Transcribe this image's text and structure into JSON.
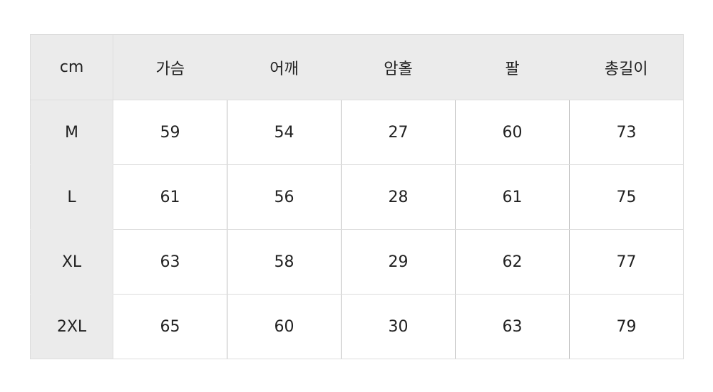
{
  "table": {
    "headers": [
      "cm",
      "가슴",
      "어깨",
      "암홀",
      "팔",
      "총길이"
    ],
    "rows": [
      {
        "size": "M",
        "values": [
          "59",
          "54",
          "27",
          "60",
          "73"
        ]
      },
      {
        "size": "L",
        "values": [
          "61",
          "56",
          "28",
          "61",
          "75"
        ]
      },
      {
        "size": "XL",
        "values": [
          "63",
          "58",
          "29",
          "62",
          "77"
        ]
      },
      {
        "size": "2XL",
        "values": [
          "65",
          "60",
          "30",
          "63",
          "79"
        ]
      }
    ]
  },
  "colors": {
    "header_bg": "#ebebeb",
    "border": "#dddddd"
  }
}
